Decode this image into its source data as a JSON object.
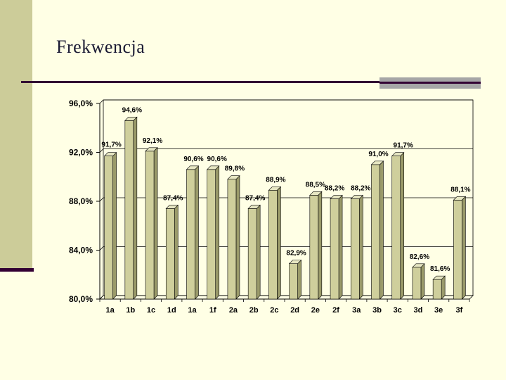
{
  "slide": {
    "title": "Frekwencja"
  },
  "colors": {
    "background": "#FFFFE5",
    "accent_bar": "#CCCC99",
    "dark_rule": "#330033",
    "bar_fill": "#CFCF9C",
    "bar_side": "#9A9A6A",
    "bar_top": "#E6E6C2"
  },
  "chart_data": {
    "type": "bar",
    "title": "",
    "xlabel": "",
    "ylabel": "",
    "categories": [
      "1a",
      "1b",
      "1c",
      "1d",
      "1a",
      "1f",
      "2a",
      "2b",
      "2c",
      "2d",
      "2e",
      "2f",
      "3a",
      "3b",
      "3c",
      "3d",
      "3e",
      "3f"
    ],
    "values": [
      91.7,
      94.6,
      92.1,
      87.4,
      90.6,
      90.6,
      89.8,
      87.4,
      88.9,
      82.9,
      88.5,
      88.2,
      88.2,
      91.0,
      91.7,
      82.6,
      81.6,
      88.1
    ],
    "data_labels": [
      "91,7%",
      "94,6%",
      "92,1%",
      "87,4%",
      "90,6%",
      "90,6%",
      "89,8%",
      "87,4%",
      "88,9%",
      "82,9%",
      "88,5%",
      "88,2%",
      "88,2%",
      "91,0%",
      "91,7%",
      "82,6%",
      "81,6%",
      "88,1%"
    ],
    "ylim": [
      80,
      96
    ],
    "yticks": [
      80,
      84,
      88,
      92,
      96
    ],
    "ytick_labels": [
      "80,0%",
      "84,0%",
      "88,0%",
      "92,0%",
      "96,0%"
    ],
    "grid": true,
    "legend": "none"
  }
}
